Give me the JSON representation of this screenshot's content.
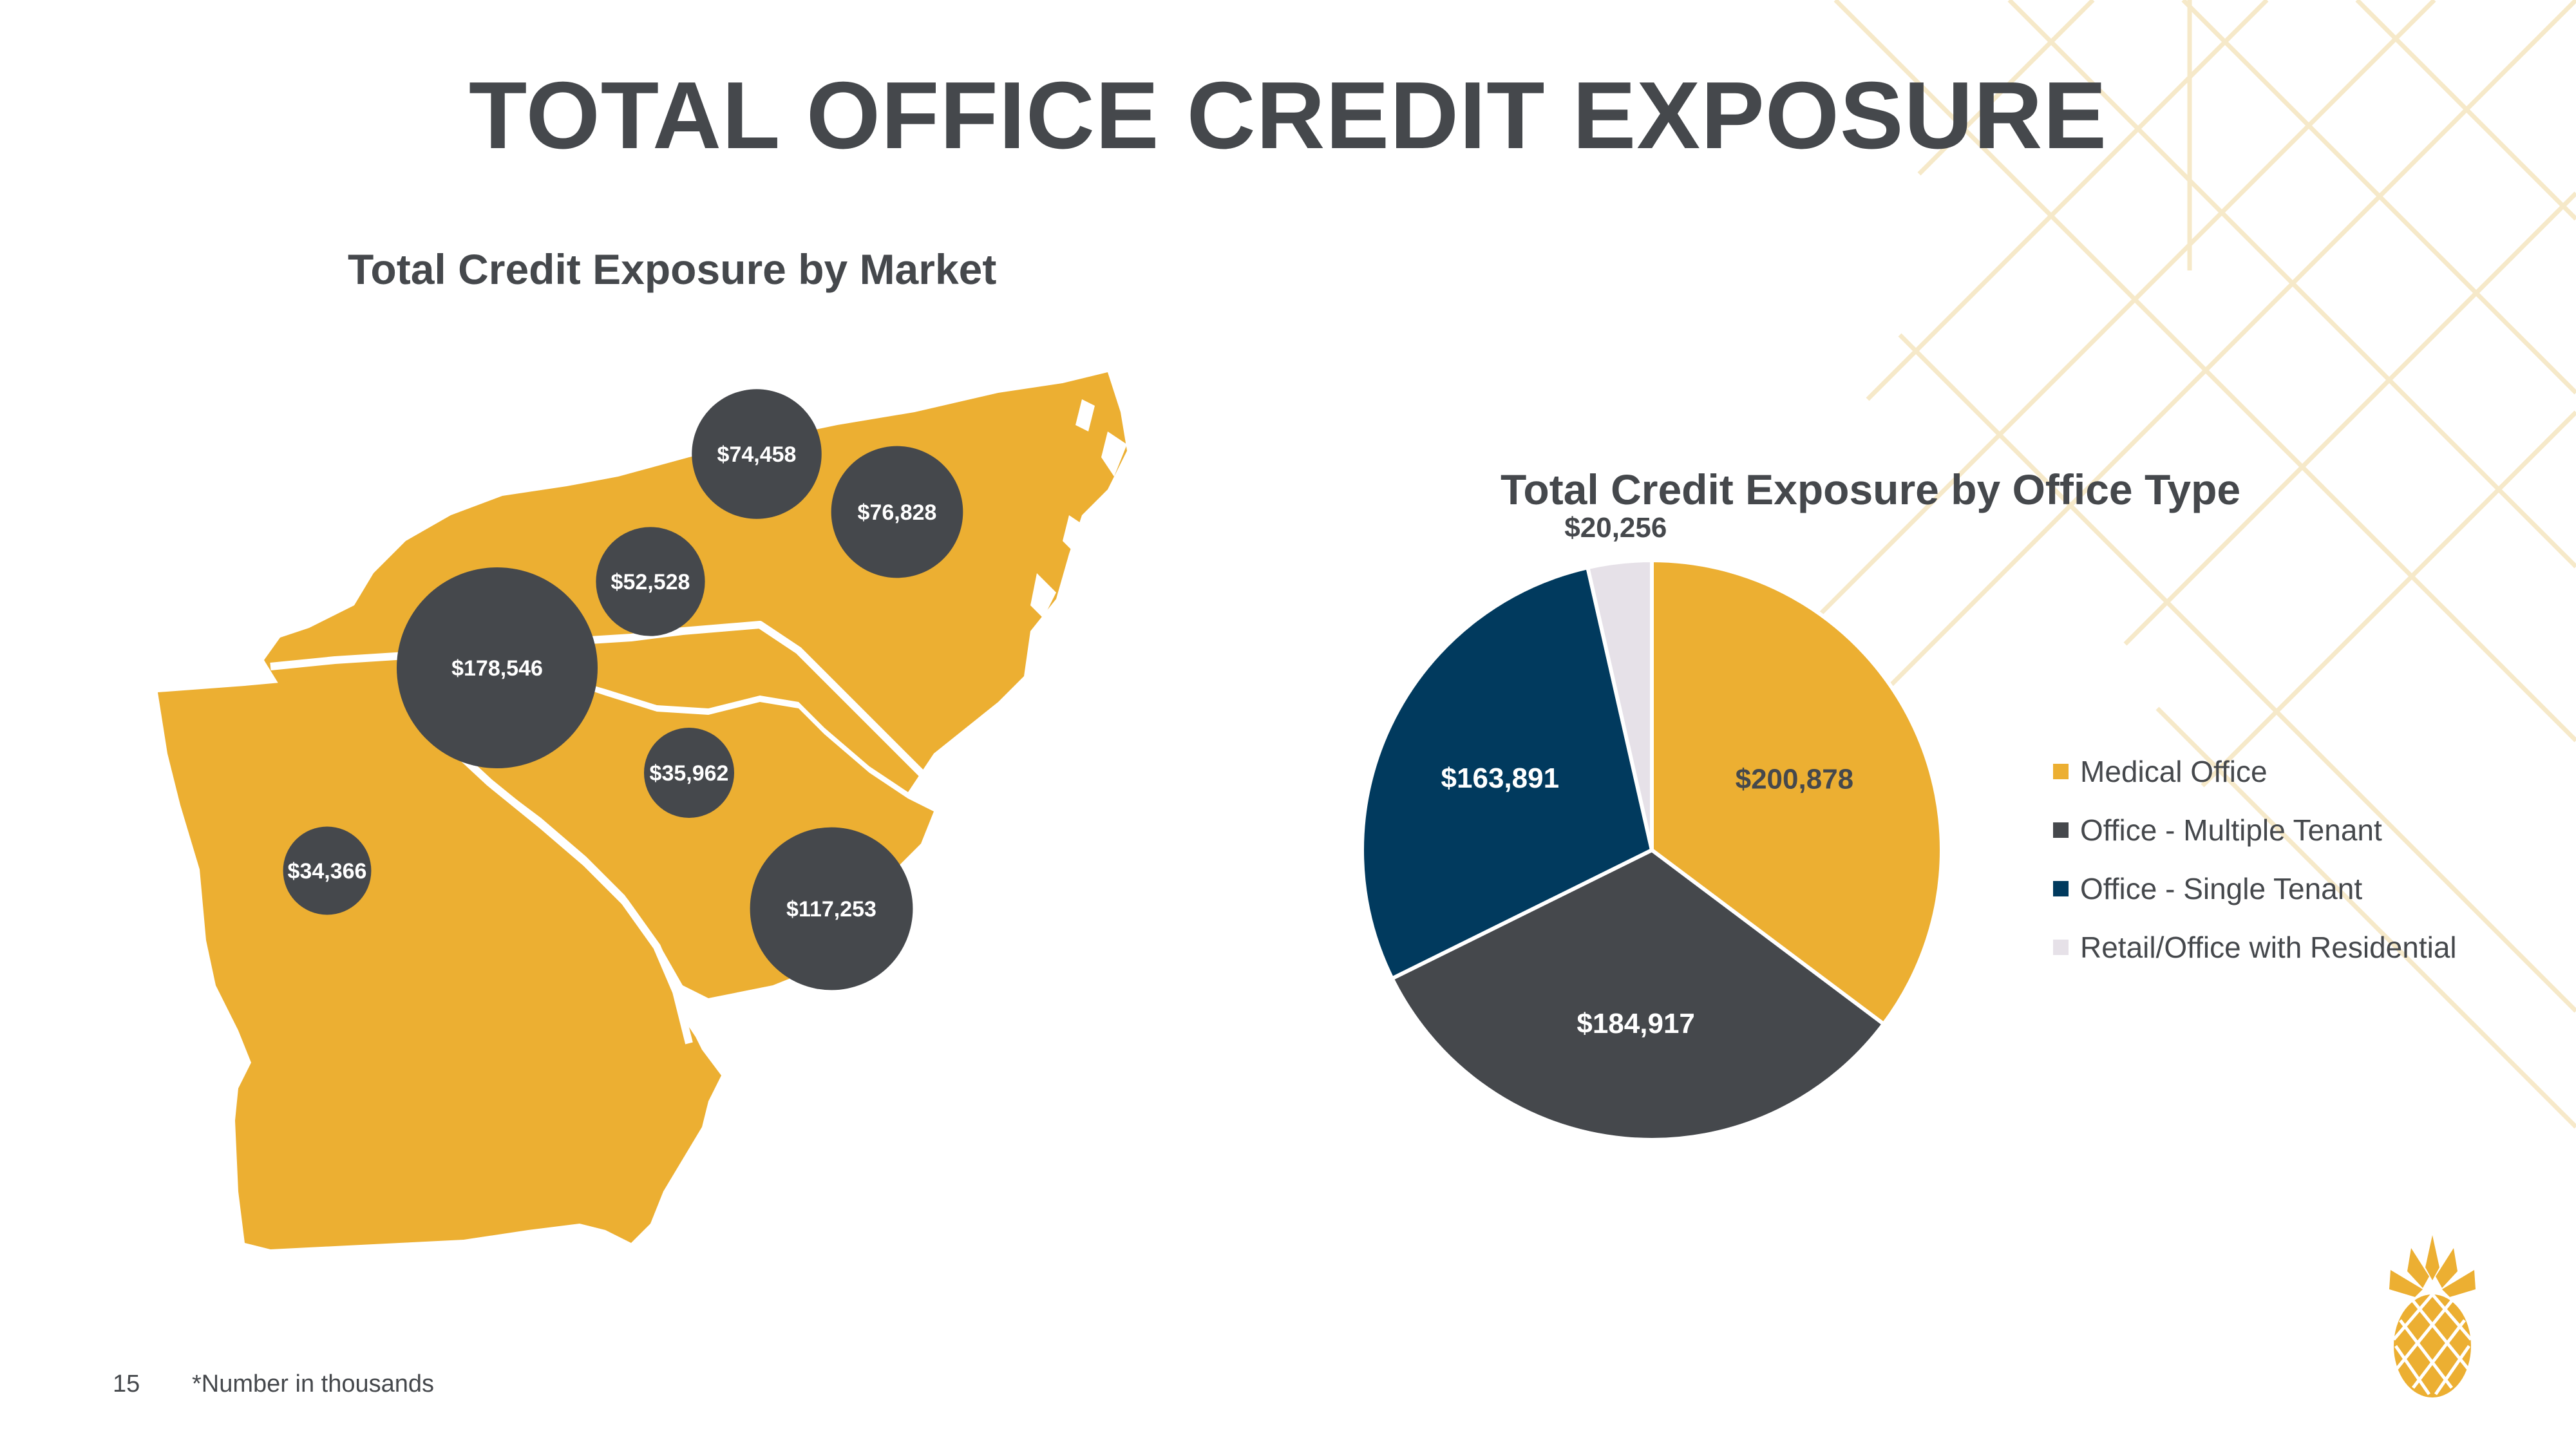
{
  "slide": {
    "title": "TOTAL OFFICE CREDIT EXPOSURE",
    "page_number": "15",
    "footnote": "*Number in thousands"
  },
  "colors": {
    "accent_gold": "#ecaf32",
    "charcoal": "#45484c",
    "navy": "#013a5e",
    "light_lavender": "#e6e1e8",
    "bg_line": "#f6e7c4"
  },
  "map": {
    "title": "Total Credit Exposure by Market",
    "regions": [
      "North Carolina",
      "South Carolina",
      "Georgia"
    ]
  },
  "chart_data": [
    {
      "type": "bubble",
      "title": "Total Credit Exposure by Market",
      "unit": "thousands",
      "values": [
        74458,
        76828,
        52528,
        178546,
        35962,
        34366,
        117253
      ],
      "labels": [
        "$74,458",
        "$76,828",
        "$52,528",
        "$178,546",
        "$35,962",
        "$34,366",
        "$117,253"
      ]
    },
    {
      "type": "pie",
      "title": "Total Credit Exposure by Office Type",
      "unit": "thousands",
      "legend_position": "right",
      "series": [
        {
          "name": "Medical Office",
          "value": 200878,
          "label": "$200,878",
          "color": "#ecaf32"
        },
        {
          "name": "Office - Multiple Tenant",
          "value": 184917,
          "label": "$184,917",
          "color": "#45484c"
        },
        {
          "name": "Office - Single Tenant",
          "value": 163891,
          "label": "$163,891",
          "color": "#013a5e"
        },
        {
          "name": "Retail/Office with Residential",
          "value": 20256,
          "label": "$20,256",
          "color": "#e6e1e8"
        }
      ]
    }
  ],
  "logo": {
    "icon": "pineapple-icon"
  }
}
